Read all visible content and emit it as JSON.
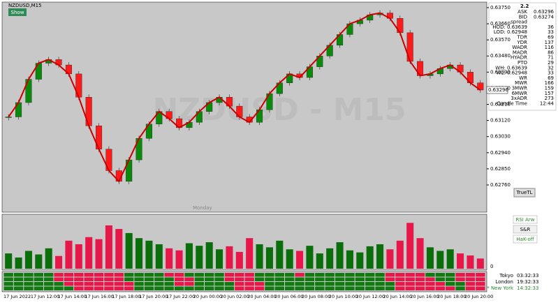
{
  "window": {
    "symbol": "NZDUSD,M15",
    "show_button": "Show",
    "watermark": "NZDUSD - M15",
    "session_label": "Monday",
    "true_tl": "TrueTL",
    "sub_buttons": [
      "RSI Arw",
      "S&R",
      "HaK-off"
    ],
    "sub_axis_zero": "0",
    "clocks": [
      [
        "Tokyo",
        "03:32:33"
      ],
      [
        "London",
        "19:32:33"
      ],
      [
        "* New York",
        "14:32:33"
      ]
    ],
    "current_price": "0.63296",
    "time_axis": [
      "17 Jun 2022",
      "17 Jun 12:00",
      "17 Jun 14:00",
      "17 Jun 16:00",
      "17 Jun 18:00",
      "17 Jun 20:00",
      "17 Jun 22:00",
      "20 Jun 00:00",
      "20 Jun 02:00",
      "20 Jun 04:00",
      "20 Jun 06:00",
      "20 Jun 08:00",
      "20 Jun 10:00",
      "20 Jun 12:00",
      "20 Jun 14:00",
      "20 Jun 16:00",
      "20 Jun 18:00",
      "20 Jun 20:00"
    ]
  },
  "info_panel": {
    "top": "2.2",
    "rows": [
      [
        "ASK",
        "0.63296"
      ],
      [
        "BID",
        "0.63274"
      ],
      [
        "spread",
        ""
      ],
      [
        "HOD: 0.63639",
        "36"
      ],
      [
        "LOD: 0.62948",
        "33"
      ],
      [
        "TDR",
        "69"
      ],
      [
        "YDR",
        "137"
      ],
      [
        "WADR",
        "116"
      ],
      [
        "MADR",
        "86"
      ],
      [
        "HYADR",
        "71"
      ],
      [
        "PTO",
        "29"
      ],
      [
        "WH: 0.63639",
        "32"
      ],
      [
        "WL: 0.62948",
        "33"
      ],
      [
        "WR",
        "69"
      ],
      [
        "MWR",
        "166"
      ],
      [
        "3MWR",
        "159"
      ],
      [
        "6MWR",
        "157"
      ],
      [
        "3xADR",
        "273"
      ],
      [
        "Candle Time",
        "12:44"
      ]
    ]
  },
  "chart_data": {
    "type": "candlestick",
    "ylim": [
      0.62608,
      0.63781
    ],
    "yticks": [
      {
        "value": 0.6375,
        "label": "0.63750"
      },
      {
        "value": 0.6366,
        "label": "0.63660"
      },
      {
        "value": 0.6357,
        "label": "0.63570"
      },
      {
        "value": 0.6348,
        "label": "0.63480"
      },
      {
        "value": 0.6339,
        "label": "0.63390"
      },
      {
        "value": 0.633,
        "label": "0.63300"
      },
      {
        "value": 0.6321,
        "label": "0.63210"
      },
      {
        "value": 0.6312,
        "label": "0.63120"
      },
      {
        "value": 0.6303,
        "label": "0.63030"
      },
      {
        "value": 0.6294,
        "label": "0.62940"
      },
      {
        "value": 0.6285,
        "label": "0.62850"
      },
      {
        "value": 0.6276,
        "label": "0.62760"
      }
    ],
    "series": [
      {
        "name": "NZDUSD",
        "values": [
          0.6314,
          0.6322,
          0.6335,
          0.6344,
          0.6346,
          0.6343,
          0.6338,
          0.6325,
          0.6309,
          0.6296,
          0.6284,
          0.6278,
          0.629,
          0.6302,
          0.631,
          0.6317,
          0.6313,
          0.6308,
          0.6311,
          0.6317,
          0.6322,
          0.6325,
          0.632,
          0.6314,
          0.6311,
          0.6318,
          0.6327,
          0.6333,
          0.6338,
          0.6336,
          0.6342,
          0.6348,
          0.6354,
          0.636,
          0.6366,
          0.6368,
          0.6371,
          0.6372,
          0.6369,
          0.6361,
          0.6345,
          0.6337,
          0.6338,
          0.6341,
          0.6343,
          0.6339,
          0.6333,
          0.6329
        ]
      },
      {
        "name": "Volume",
        "ylim": [
          0,
          100
        ],
        "values": [
          30,
          22,
          35,
          28,
          40,
          25,
          55,
          48,
          62,
          58,
          85,
          78,
          70,
          60,
          55,
          48,
          40,
          36,
          50,
          45,
          52,
          38,
          44,
          33,
          60,
          48,
          42,
          55,
          38,
          35,
          45,
          30,
          40,
          52,
          36,
          32,
          44,
          48,
          38,
          55,
          90,
          60,
          42,
          35,
          38,
          30,
          26,
          20
        ]
      }
    ]
  }
}
